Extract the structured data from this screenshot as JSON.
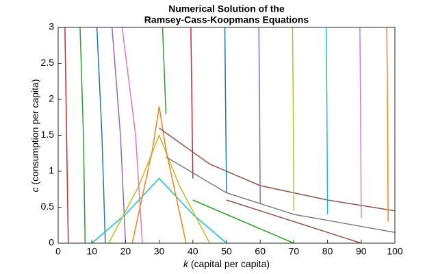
{
  "chart_data": {
    "type": "line",
    "title": [
      "Numerical Solution of the",
      "Ramsey-Cass-Koopmans Equations"
    ],
    "xlabel": {
      "symbol": "k",
      "text": "(capital per capita)"
    },
    "ylabel": {
      "symbol": "c",
      "text": "(consumption per capita)"
    },
    "xlim": [
      0,
      100
    ],
    "ylim": [
      0,
      3
    ],
    "xticks": [
      0,
      10,
      20,
      30,
      40,
      50,
      60,
      70,
      80,
      90,
      100
    ],
    "yticks": [
      0,
      0.5,
      1,
      1.5,
      2,
      2.5,
      3
    ],
    "series": [
      {
        "color": "#d62728",
        "x": [
          3,
          2.5,
          2
        ],
        "values": [
          0,
          1.5,
          3
        ]
      },
      {
        "color": "#2ca02c",
        "x": [
          8,
          7.5,
          6.5
        ],
        "values": [
          0,
          1.5,
          3
        ]
      },
      {
        "color": "#1f77b4",
        "x": [
          14,
          13,
          11.5
        ],
        "values": [
          0,
          1.5,
          3
        ]
      },
      {
        "color": "#9467bd",
        "x": [
          20,
          18.5,
          16
        ],
        "values": [
          0,
          1.5,
          3
        ]
      },
      {
        "color": "#e377c2",
        "x": [
          25,
          23,
          19
        ],
        "values": [
          0,
          1.5,
          3
        ]
      },
      {
        "color": "#17becf",
        "x": [
          10,
          20,
          30,
          40,
          50
        ],
        "values": [
          0,
          0.4,
          0.9,
          0.4,
          0
        ]
      },
      {
        "color": "#bcbd22",
        "x": [
          15,
          24,
          30,
          36,
          45
        ],
        "values": [
          0,
          0.8,
          1.5,
          0.8,
          0
        ]
      },
      {
        "color": "#ff7f0e",
        "x": [
          22,
          28,
          30,
          32,
          38
        ],
        "values": [
          0,
          1.3,
          1.9,
          1.3,
          0
        ]
      },
      {
        "color": "#8c564b",
        "x": [
          30,
          45,
          60,
          80,
          100
        ],
        "values": [
          1.6,
          1.1,
          0.8,
          0.6,
          0.45
        ]
      },
      {
        "color": "#7f7f7f",
        "x": [
          32,
          50,
          70,
          100
        ],
        "values": [
          1.2,
          0.7,
          0.4,
          0.15
        ]
      },
      {
        "color": "#2ca02c",
        "x": [
          32,
          31.5,
          31
        ],
        "values": [
          1.8,
          2.4,
          3
        ]
      },
      {
        "color": "#d62728",
        "x": [
          40,
          39.7,
          39.4
        ],
        "values": [
          0.9,
          2,
          3
        ]
      },
      {
        "color": "#1f77b4",
        "x": [
          50,
          49.7,
          49.5
        ],
        "values": [
          0.7,
          2,
          3
        ]
      },
      {
        "color": "#9467bd",
        "x": [
          60,
          59.8,
          59.6
        ],
        "values": [
          0.55,
          2,
          3
        ]
      },
      {
        "color": "#bcbd22",
        "x": [
          70,
          69.8,
          69.6
        ],
        "values": [
          0.45,
          2,
          3
        ]
      },
      {
        "color": "#17becf",
        "x": [
          80,
          79.8,
          79.6
        ],
        "values": [
          0.4,
          2,
          3
        ]
      },
      {
        "color": "#e377c2",
        "x": [
          90,
          89.8,
          89.6
        ],
        "values": [
          0.35,
          2,
          3
        ]
      },
      {
        "color": "#ff7f0e",
        "x": [
          98,
          97.8,
          97.6
        ],
        "values": [
          0.3,
          2,
          3
        ]
      },
      {
        "color": "#8c564b",
        "x": [
          50,
          70,
          90
        ],
        "values": [
          0.6,
          0.3,
          0
        ]
      },
      {
        "color": "#2ca02c",
        "x": [
          40,
          55,
          70
        ],
        "values": [
          0.6,
          0.3,
          0
        ]
      }
    ]
  }
}
